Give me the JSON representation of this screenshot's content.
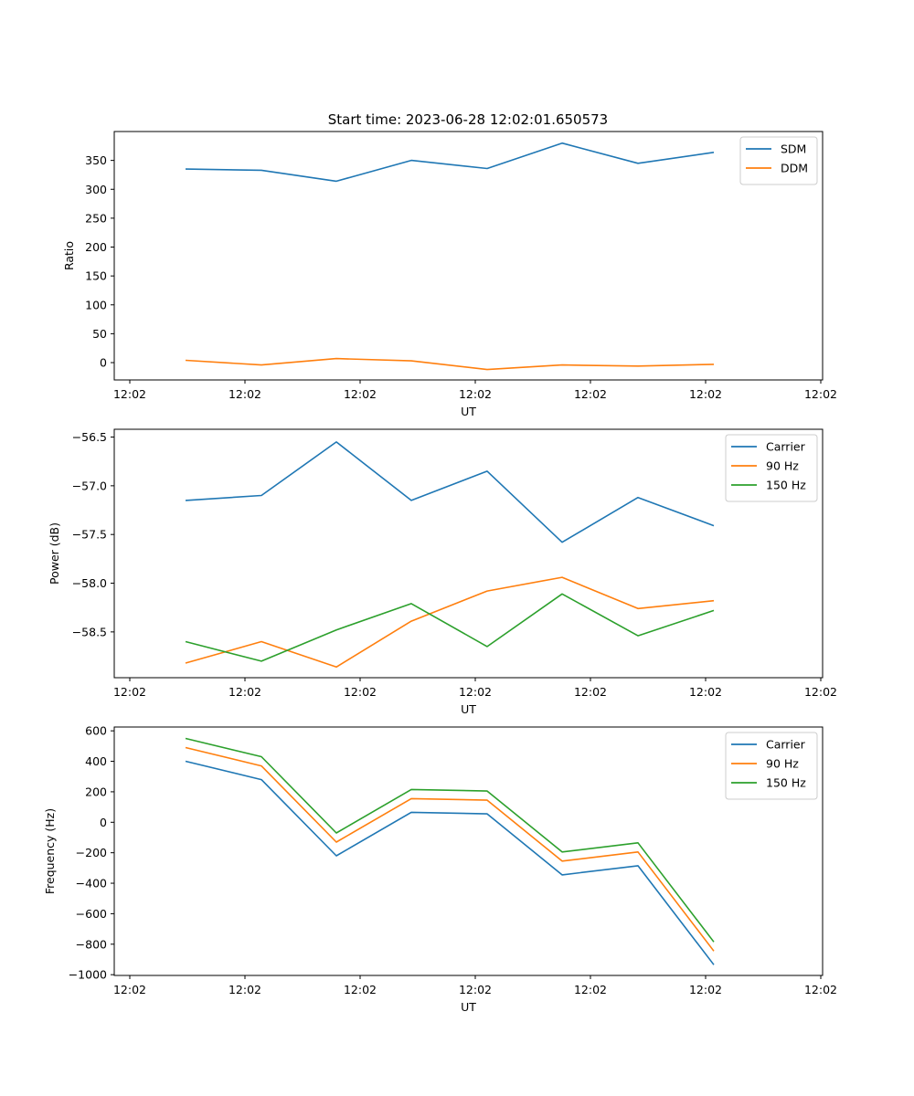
{
  "figure": {
    "title": "Start time: 2023-06-28 12:02:01.650573"
  },
  "chart_data": [
    {
      "type": "line",
      "title": "Start time: 2023-06-28 12:02:01.650573",
      "xlabel": "UT",
      "ylabel": "Ratio",
      "x_tick_labels": [
        "12:02",
        "12:02",
        "12:02",
        "12:02",
        "12:02",
        "12:02",
        "12:02"
      ],
      "y_ticks": [
        0,
        50,
        100,
        150,
        200,
        250,
        300,
        350
      ],
      "ylim": [
        -30,
        400
      ],
      "legend_position": "top-right",
      "grid": false,
      "series": [
        {
          "name": "SDM",
          "color": "#1f77b4",
          "values": [
            335,
            333,
            314,
            350,
            336,
            380,
            345,
            364
          ]
        },
        {
          "name": "DDM",
          "color": "#ff7f0e",
          "values": [
            4,
            -4,
            7,
            3,
            -12,
            -4,
            -6,
            -3
          ]
        }
      ]
    },
    {
      "type": "line",
      "title": "",
      "xlabel": "UT",
      "ylabel": "Power (dB)",
      "x_tick_labels": [
        "12:02",
        "12:02",
        "12:02",
        "12:02",
        "12:02",
        "12:02",
        "12:02"
      ],
      "y_ticks": [
        -58.5,
        -58.0,
        -57.5,
        -57.0,
        -56.5
      ],
      "y_tick_labels": [
        "−58.5",
        "−58.0",
        "−57.5",
        "−57.0",
        "−56.5"
      ],
      "ylim": [
        -58.97,
        -56.42
      ],
      "legend_position": "top-right",
      "grid": false,
      "series": [
        {
          "name": "Carrier",
          "color": "#1f77b4",
          "values": [
            -57.15,
            -57.1,
            -56.55,
            -57.15,
            -56.85,
            -57.58,
            -57.12,
            -57.41
          ]
        },
        {
          "name": "90 Hz",
          "color": "#ff7f0e",
          "values": [
            -58.82,
            -58.6,
            -58.86,
            -58.39,
            -58.08,
            -57.94,
            -58.26,
            -58.18
          ]
        },
        {
          "name": "150 Hz",
          "color": "#2ca02c",
          "values": [
            -58.6,
            -58.8,
            -58.48,
            -58.21,
            -58.65,
            -58.11,
            -58.54,
            -58.28
          ]
        }
      ]
    },
    {
      "type": "line",
      "title": "",
      "xlabel": "UT",
      "ylabel": "Frequency (Hz)",
      "x_tick_labels": [
        "12:02",
        "12:02",
        "12:02",
        "12:02",
        "12:02",
        "12:02",
        "12:02"
      ],
      "y_ticks": [
        -1000,
        -800,
        -600,
        -400,
        -200,
        0,
        200,
        400,
        600
      ],
      "y_tick_labels": [
        "−1000",
        "−800",
        "−600",
        "−400",
        "−200",
        "0",
        "200",
        "400",
        "600"
      ],
      "ylim": [
        -1005,
        625
      ],
      "legend_position": "top-right",
      "grid": false,
      "series": [
        {
          "name": "Carrier",
          "color": "#1f77b4",
          "values": [
            400,
            280,
            -220,
            65,
            55,
            -345,
            -285,
            -935
          ]
        },
        {
          "name": "90 Hz",
          "color": "#ff7f0e",
          "values": [
            490,
            370,
            -130,
            155,
            145,
            -255,
            -195,
            -845
          ]
        },
        {
          "name": "150 Hz",
          "color": "#2ca02c",
          "values": [
            550,
            430,
            -70,
            215,
            205,
            -195,
            -135,
            -785
          ]
        }
      ]
    }
  ]
}
